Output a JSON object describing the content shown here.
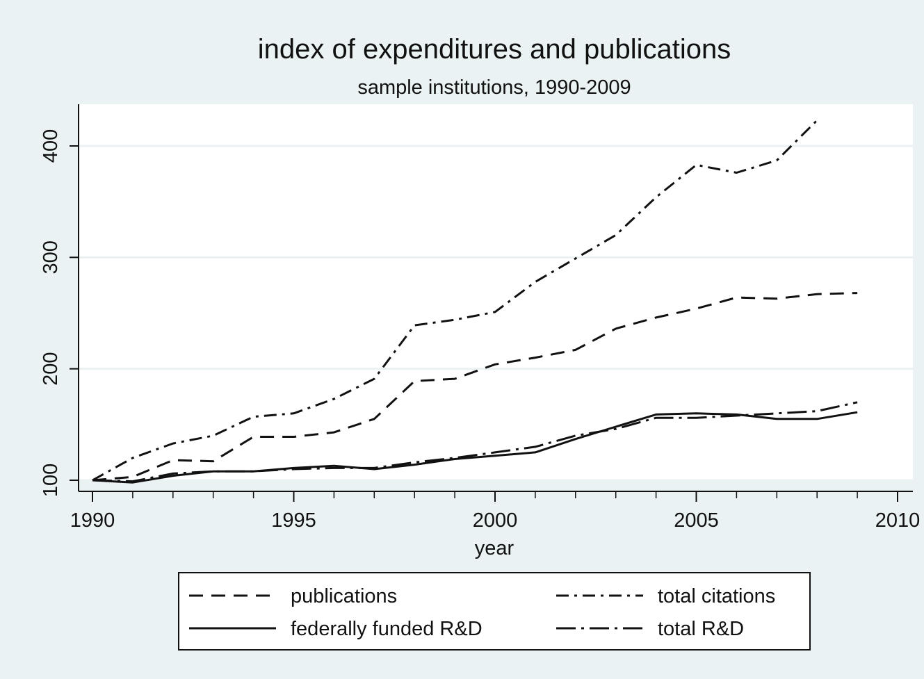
{
  "chart_data": {
    "type": "line",
    "title": "index of expenditures and publications",
    "subtitle": "sample institutions, 1990-2009",
    "xlabel": "year",
    "ylabel": "",
    "xlim": [
      1990,
      2010
    ],
    "ylim": [
      90,
      440
    ],
    "xticks": [
      1990,
      1995,
      2000,
      2005,
      2010
    ],
    "yticks": [
      100,
      200,
      300,
      400
    ],
    "grid": true,
    "legend_position": "bottom",
    "x": [
      1990,
      1991,
      1992,
      1993,
      1994,
      1995,
      1996,
      1997,
      1998,
      1999,
      2000,
      2001,
      2002,
      2003,
      2004,
      2005,
      2006,
      2007,
      2008,
      2009
    ],
    "series": [
      {
        "name": "publications",
        "dash": "long-dash",
        "values": [
          100,
          103,
          118,
          117,
          139,
          139,
          143,
          155,
          189,
          191,
          204,
          210,
          217,
          236,
          246,
          254,
          264,
          263,
          267,
          268
        ]
      },
      {
        "name": "total citations",
        "dash": "dash-dot",
        "values": [
          100,
          120,
          133,
          140,
          157,
          160,
          173,
          191,
          239,
          244,
          251,
          278,
          299,
          320,
          354,
          383,
          376,
          387,
          423,
          null
        ]
      },
      {
        "name": "federally funded R&D",
        "dash": "solid",
        "values": [
          100,
          98,
          104,
          108,
          108,
          111,
          113,
          110,
          114,
          119,
          122,
          125,
          137,
          148,
          159,
          160,
          159,
          155,
          155,
          161
        ]
      },
      {
        "name": "total R&D",
        "dash": "long-dash-dot",
        "values": [
          100,
          99,
          106,
          108,
          108,
          110,
          111,
          111,
          116,
          120,
          125,
          130,
          140,
          146,
          156,
          156,
          158,
          160,
          162,
          170
        ]
      }
    ]
  }
}
